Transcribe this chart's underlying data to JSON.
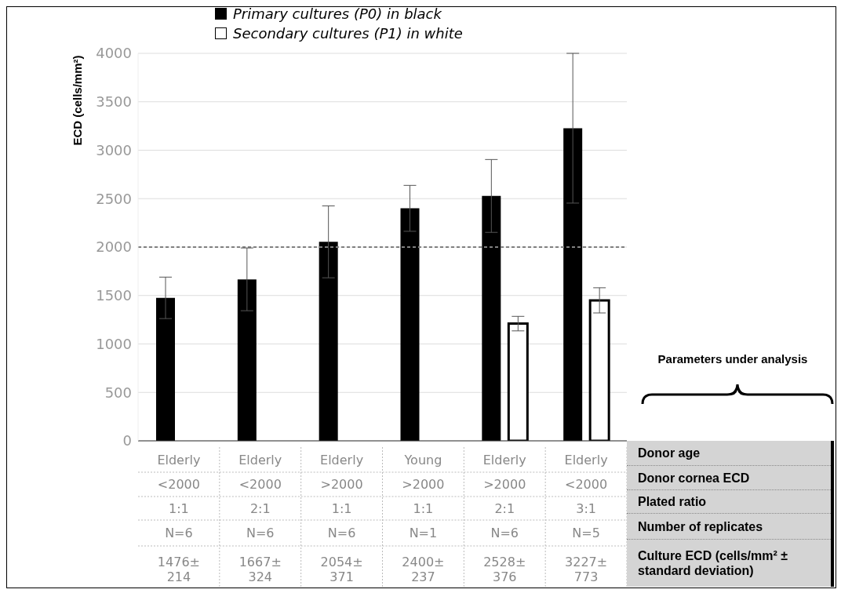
{
  "chart_data": {
    "type": "bar",
    "ylabel": "ECD (cells/mm²)",
    "categories": [
      "Elderly\n<2000\n1:1\nN=6",
      "Elderly\n<2000\n2:1\nN=6",
      "Elderly\n>2000\n1:1\nN=6",
      "Young\n>2000\n1:1\nN=1",
      "Elderly\n>2000\n2:1\nN=6",
      "Elderly\n<2000\n3:1\nN=5"
    ],
    "series": [
      {
        "name": "Primary cultures (P0) in black",
        "color": "#000000",
        "values": [
          1476,
          1667,
          2054,
          2400,
          2528,
          3227
        ],
        "errors": [
          214,
          324,
          371,
          237,
          376,
          773
        ],
        "value_labels": [
          "1476± 214",
          "1667± 324",
          "2054± 371",
          "2400± 237",
          "2528± 376",
          "3227± 773"
        ]
      },
      {
        "name": "Secondary cultures (P1) in white",
        "color": "#ffffff",
        "values": [
          null,
          null,
          null,
          null,
          1210,
          1450
        ],
        "errors": [
          null,
          null,
          null,
          null,
          75,
          130
        ]
      }
    ],
    "ylim": [
      0,
      4000
    ],
    "yticks": [
      0,
      500,
      1000,
      1500,
      2000,
      2500,
      3000,
      3500,
      4000
    ],
    "grid": "y",
    "legend": "top",
    "ref_lines": [
      {
        "axis": "y",
        "value": 2000,
        "color": "#808080",
        "line_style": "dashed"
      }
    ],
    "annotations": [
      "Parameters under analysis",
      "Donor age",
      "Donor cornea ECD",
      "Plated ratio",
      "Number of replicates",
      "Culture ECD (cells/mm² ± standard deviation)"
    ]
  }
}
